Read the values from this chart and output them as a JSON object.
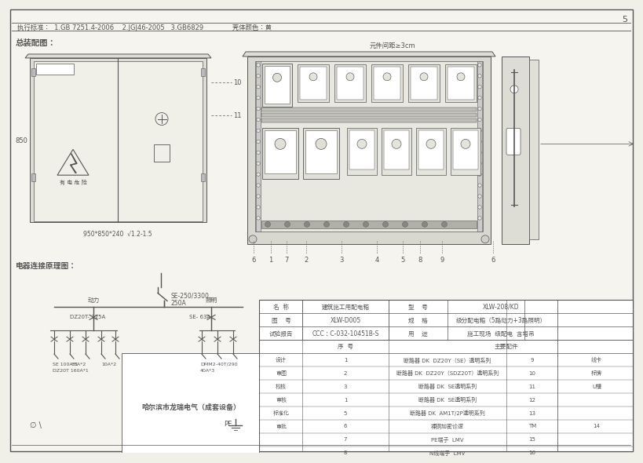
{
  "page_num": "5",
  "bg_color": "#f0efe8",
  "paper_color": "#f5f4ee",
  "border_color": "#444444",
  "line_color": "#555555",
  "header_text": "执行标准：  1.GB 7251.4-2006    2.JGJ46-2005   3.GB6829              壳体颜色：黄",
  "section1_title": "总装配图：",
  "section2_title": "电器连接原理图：",
  "dim_label": "元件间距≥3cm",
  "box_dim": "950*850*240  √1.2-1.5",
  "dim_850": "850",
  "bottom_labels": [
    "6",
    "1",
    "7",
    "2",
    "3",
    "4",
    "5",
    "8",
    "9",
    "6"
  ],
  "callout_10": "10",
  "callout_11": "11",
  "table_headers": [
    "名  称",
    "建筑施工用配电箱",
    "型    号",
    "XLW-208/KD"
  ],
  "table_row1": [
    "图    号",
    "XLW-D005",
    "规    格",
    "级分配电箱（5路动力+3路照明）"
  ],
  "table_row2": [
    "试验报告",
    "CCC：C-032-10451B-S",
    "用    途",
    "施工现场  级配电  含塔吊"
  ],
  "parts_subheader": [
    "",
    "序  号",
    "主要配件",
    "",
    "",
    ""
  ],
  "parts_rows": [
    [
      "设计",
      "1",
      "断路器 DK  DZ20Y（SE）透明系列",
      "9",
      "线卡"
    ],
    [
      "审图",
      "2",
      "断路器 DK  DZ20Y（SDZ20T）透明系列",
      "10",
      "标牌"
    ],
    [
      "校核",
      "3",
      "断路器 DK  SE透明系列",
      "11",
      "U槽"
    ],
    [
      "审核",
      "1",
      "断路器 DK  SE透明系列",
      "12",
      ""
    ],
    [
      "标准化",
      "5",
      "断路器 DK  AM1T/2P透明系列",
      "13",
      ""
    ],
    [
      "审批",
      "6",
      "裸铜加密诊逻",
      "TM",
      "14"
    ],
    [
      "",
      "7",
      "PE端子  LMV",
      "15",
      ""
    ],
    [
      "",
      "8",
      "N线端子  LMV",
      "16",
      ""
    ]
  ],
  "company": "哈尔滨市龙瑞电气（成套设备）",
  "circuit_labels": {
    "power": "动力",
    "lighting": "照明",
    "se_250": "SE-250/3300",
    "a250": "250A",
    "dz20t_225": "DZ20T- 225A",
    "se_63": "SE- 63A",
    "se_100": "SE 100A*1",
    "a63": "63A*2",
    "a10": "10A*2",
    "dmm2": "DMM2-40T/290",
    "dz20t_160": "DZ20T 160A*1",
    "a40": "40A*3"
  }
}
